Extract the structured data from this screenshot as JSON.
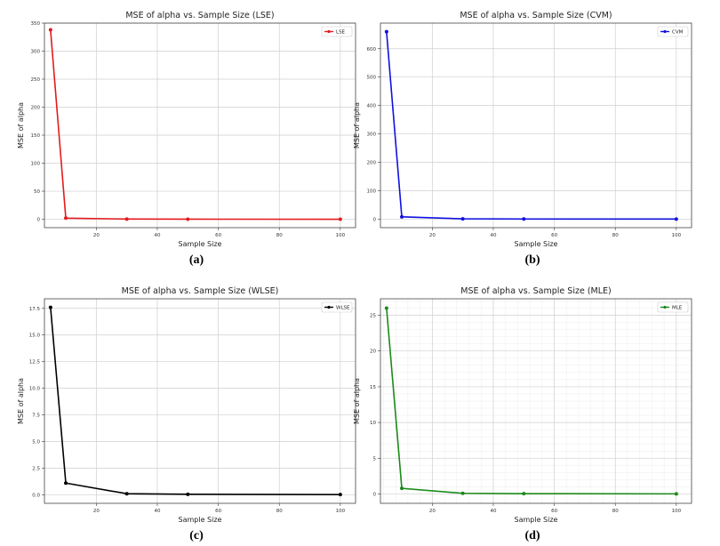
{
  "chart_data": [
    {
      "type": "line",
      "title": "MSE of alpha vs. Sample Size (LSE)",
      "xlabel": "Sample Size",
      "ylabel": "MSE of alpha",
      "caption": "(a)",
      "x": [
        5,
        10,
        30,
        50,
        100
      ],
      "xlim": [
        3,
        105
      ],
      "xticks": [
        20,
        40,
        60,
        80,
        100
      ],
      "ylim": [
        -15,
        350
      ],
      "yticks": [
        0,
        50,
        100,
        150,
        200,
        250,
        300,
        350
      ],
      "series": [
        {
          "name": "LSE",
          "values": [
            338,
            2,
            0.3,
            0.1,
            0.05
          ],
          "color": "#e31a1c"
        }
      ],
      "legend": "top-right",
      "grid": true
    },
    {
      "type": "line",
      "title": "MSE of alpha vs. Sample Size (CVM)",
      "xlabel": "Sample Size",
      "ylabel": "MSE of alpha",
      "caption": "(b)",
      "x": [
        5,
        10,
        30,
        50,
        100
      ],
      "xlim": [
        3,
        105
      ],
      "xticks": [
        20,
        40,
        60,
        80,
        100
      ],
      "ylim": [
        -30,
        690
      ],
      "yticks": [
        0,
        100,
        200,
        300,
        400,
        500,
        600
      ],
      "series": [
        {
          "name": "CVM",
          "values": [
            660,
            8,
            1,
            0.5,
            0.2
          ],
          "color": "#1010e0"
        }
      ],
      "legend": "top-right",
      "grid": true
    },
    {
      "type": "line",
      "title": "MSE of alpha vs. Sample Size (WLSE)",
      "xlabel": "Sample Size",
      "ylabel": "MSE of alpha",
      "caption": "(c)",
      "x": [
        5,
        10,
        30,
        50,
        100
      ],
      "xlim": [
        3,
        105
      ],
      "xticks": [
        20,
        40,
        60,
        80,
        100
      ],
      "ylim": [
        -0.8,
        18.4
      ],
      "yticks": [
        0.0,
        2.5,
        5.0,
        7.5,
        10.0,
        12.5,
        15.0,
        17.5
      ],
      "series": [
        {
          "name": "WLSE",
          "values": [
            17.6,
            1.1,
            0.1,
            0.05,
            0.02
          ],
          "color": "#000000"
        }
      ],
      "legend": "top-right",
      "grid": true
    },
    {
      "type": "line",
      "title": "MSE of alpha vs. Sample Size (MLE)",
      "xlabel": "Sample Size",
      "ylabel": "MSE of alpha",
      "caption": "(d)",
      "x": [
        5,
        10,
        30,
        50,
        100
      ],
      "xlim": [
        3,
        105
      ],
      "xticks": [
        20,
        40,
        60,
        80,
        100
      ],
      "ylim": [
        -1.3,
        27.3
      ],
      "yticks": [
        0,
        5,
        10,
        15,
        20,
        25
      ],
      "series": [
        {
          "name": "MLE",
          "values": [
            26,
            0.8,
            0.1,
            0.05,
            0.02
          ],
          "color": "#1a8a1a"
        }
      ],
      "legend": "top-right",
      "grid": true
    }
  ]
}
